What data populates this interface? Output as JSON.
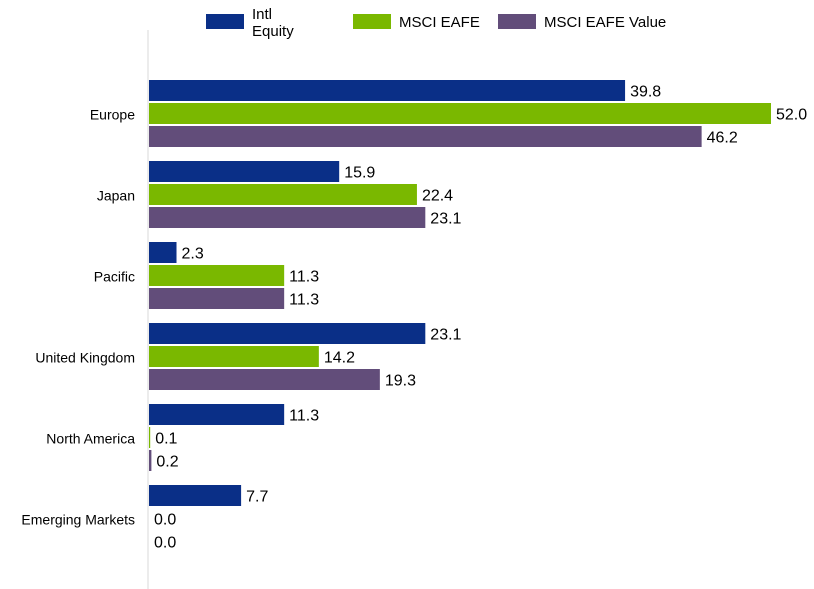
{
  "chart_data": {
    "type": "bar",
    "orientation": "horizontal",
    "categories": [
      "Europe",
      "Japan",
      "Pacific",
      "United Kingdom",
      "North America",
      "Emerging Markets"
    ],
    "series": [
      {
        "name": "Intl\nEquity",
        "color": "#0a2f87",
        "values": [
          39.8,
          15.9,
          2.3,
          23.1,
          11.3,
          7.7
        ]
      },
      {
        "name": "MSCI EAFE",
        "color": "#7ab800",
        "values": [
          52.0,
          22.4,
          11.3,
          14.2,
          0.1,
          0.0
        ]
      },
      {
        "name": "MSCI EAFE Value",
        "color": "#624d7a",
        "values": [
          46.2,
          23.1,
          11.3,
          19.3,
          0.2,
          0.0
        ]
      }
    ],
    "value_labels": [
      [
        "39.8",
        "15.9",
        "2.3",
        "23.1",
        "11.3",
        "7.7"
      ],
      [
        "52.0",
        "22.4",
        "11.3",
        "14.2",
        "0.1",
        "0.0"
      ],
      [
        "46.2",
        "23.1",
        "11.3",
        "19.3",
        "0.2",
        "0.0"
      ]
    ],
    "xlim": [
      0,
      52
    ],
    "legend_position": "top",
    "grid": false,
    "title": "",
    "xlabel": "",
    "ylabel": ""
  }
}
